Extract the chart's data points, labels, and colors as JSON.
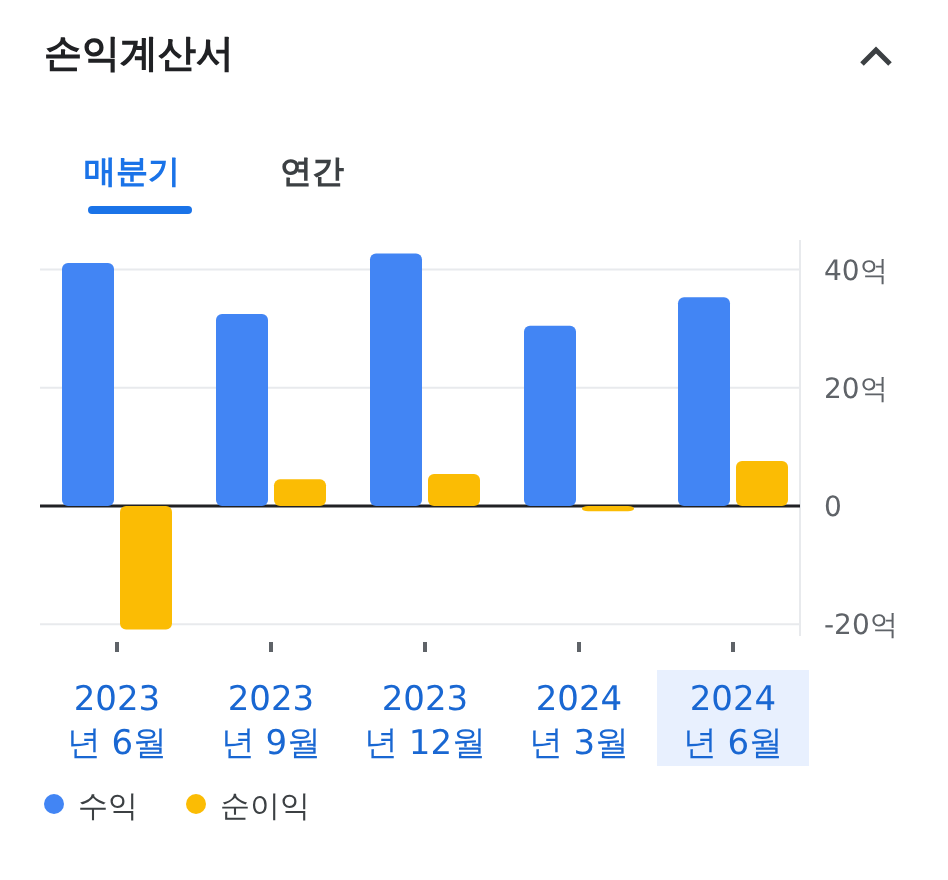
{
  "chart_data": {
    "type": "bar",
    "title": "손익계산서",
    "annotations": [
      "매분기",
      "연간"
    ],
    "categories": [
      "2023\n년 6월",
      "2023\n년 9월",
      "2023\n년 12월",
      "2024\n년 3월",
      "2024\n년 6월"
    ],
    "series": [
      {
        "name": "수익",
        "color": "#4285f4",
        "values": [
          41.1,
          32.5,
          42.7,
          30.5,
          35.3
        ]
      },
      {
        "name": "순이익",
        "color": "#fbbc04",
        "values": [
          -20.9,
          4.5,
          5.4,
          -0.9,
          7.6
        ]
      }
    ],
    "ylim": [
      -22,
      45
    ],
    "yticks": [
      {
        "value": -20,
        "label": "-20억"
      },
      0,
      {
        "value": 20,
        "label": "20억"
      },
      {
        "value": 40,
        "label": "40억"
      }
    ],
    "grid": "y",
    "legend": "bottom left",
    "marker": "circle"
  }
}
